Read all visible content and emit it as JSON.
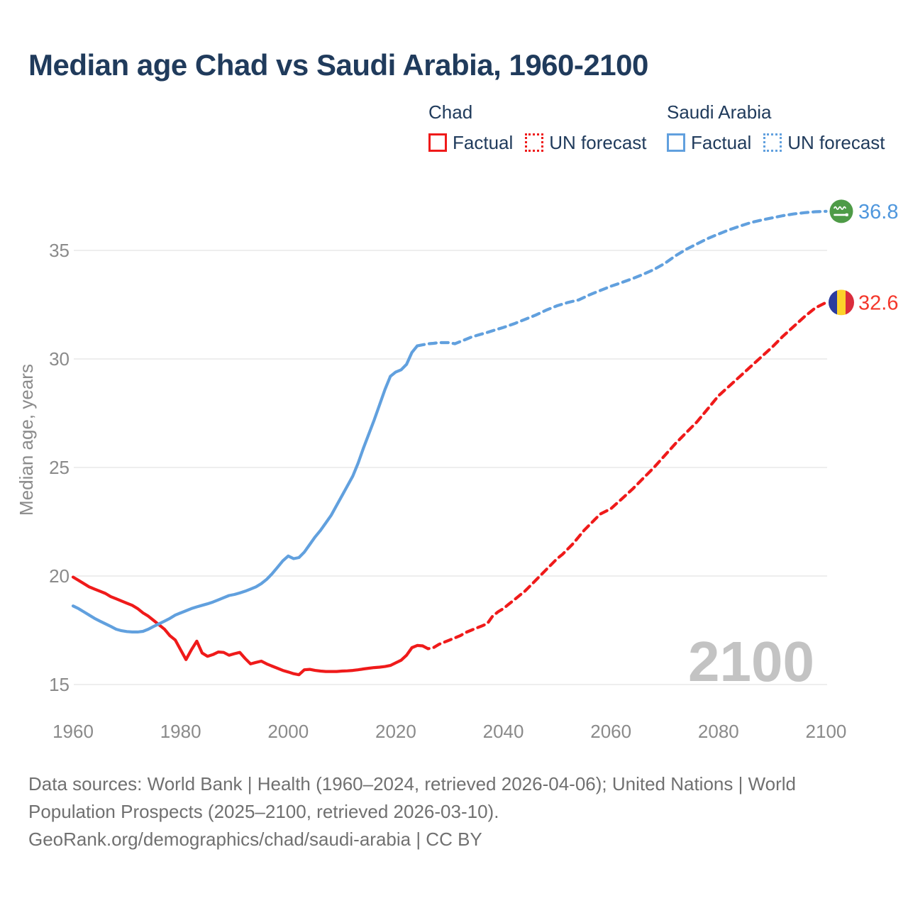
{
  "title": "Median age Chad vs Saudi Arabia, 1960-2100",
  "watermark": "2100",
  "colors": {
    "red": "#ef1a1a",
    "red_label": "#f4372b",
    "blue": "#61a0de",
    "blue_label": "#4f97dd",
    "title_text": "#203b5c",
    "axis_text": "#8a8a8a",
    "muted_text": "#707070",
    "grid": "#e9e9e9",
    "watermark": "#c3c3c3",
    "flag_saudi_green": "#4e9b47",
    "flag_chad_blue": "#2b3c9e",
    "flag_chad_yellow": "#fcd22a",
    "flag_chad_red": "#da2c3c"
  },
  "legend": {
    "groups": [
      {
        "id": "chad",
        "title": "Chad",
        "items": [
          {
            "label": "Factual",
            "swatch": "red-solid"
          },
          {
            "label": "UN forecast",
            "swatch": "red-dotted"
          }
        ]
      },
      {
        "id": "saudi-arabia",
        "title": "Saudi Arabia",
        "items": [
          {
            "label": "Factual",
            "swatch": "blue-solid"
          },
          {
            "label": "UN forecast",
            "swatch": "blue-dotted"
          }
        ]
      }
    ]
  },
  "footer": {
    "line1": "Data sources: World Bank | Health (1960–2024, retrieved 2026-04-06); United Nations | World",
    "line2": "Population Prospects (2025–2100, retrieved 2026-03-10).",
    "line3": "GeoRank.org/demographics/chad/saudi-arabia | CC BY"
  },
  "chart_data": {
    "type": "line",
    "title": "Median age Chad vs Saudi Arabia, 1960-2100",
    "xlabel": "",
    "ylabel": "Median age, years",
    "xlim": [
      1959,
      2113
    ],
    "ylim": [
      13.7,
      38
    ],
    "grid": "horizontal",
    "x_ticks": [
      1960,
      1980,
      2000,
      2020,
      2040,
      2060,
      2080,
      2100
    ],
    "y_ticks": [
      15,
      20,
      25,
      30,
      35
    ],
    "legend_position": "top-right",
    "series": [
      {
        "id": "chad-factual",
        "name": "Chad — Factual",
        "color": "red",
        "style": "solid",
        "points": [
          [
            1960,
            19.95
          ],
          [
            1961,
            19.8
          ],
          [
            1962,
            19.65
          ],
          [
            1963,
            19.5
          ],
          [
            1964,
            19.4
          ],
          [
            1965,
            19.3
          ],
          [
            1966,
            19.2
          ],
          [
            1967,
            19.05
          ],
          [
            1968,
            18.95
          ],
          [
            1969,
            18.85
          ],
          [
            1970,
            18.75
          ],
          [
            1971,
            18.65
          ],
          [
            1972,
            18.5
          ],
          [
            1973,
            18.3
          ],
          [
            1974,
            18.15
          ],
          [
            1975,
            17.95
          ],
          [
            1976,
            17.75
          ],
          [
            1977,
            17.55
          ],
          [
            1978,
            17.25
          ],
          [
            1979,
            17.05
          ],
          [
            1980,
            16.6
          ],
          [
            1981,
            16.15
          ],
          [
            1982,
            16.6
          ],
          [
            1983,
            17.0
          ],
          [
            1984,
            16.45
          ],
          [
            1985,
            16.3
          ],
          [
            1986,
            16.38
          ],
          [
            1987,
            16.5
          ],
          [
            1988,
            16.48
          ],
          [
            1989,
            16.35
          ],
          [
            1990,
            16.42
          ],
          [
            1991,
            16.48
          ],
          [
            1992,
            16.2
          ],
          [
            1993,
            15.95
          ],
          [
            1994,
            16.02
          ],
          [
            1995,
            16.08
          ],
          [
            1996,
            15.95
          ],
          [
            1997,
            15.85
          ],
          [
            1998,
            15.75
          ],
          [
            1999,
            15.65
          ],
          [
            2000,
            15.58
          ],
          [
            2001,
            15.5
          ],
          [
            2002,
            15.45
          ],
          [
            2003,
            15.68
          ],
          [
            2004,
            15.7
          ],
          [
            2005,
            15.65
          ],
          [
            2006,
            15.62
          ],
          [
            2007,
            15.6
          ],
          [
            2008,
            15.6
          ],
          [
            2009,
            15.6
          ],
          [
            2010,
            15.62
          ],
          [
            2011,
            15.63
          ],
          [
            2012,
            15.65
          ],
          [
            2013,
            15.68
          ],
          [
            2014,
            15.72
          ],
          [
            2015,
            15.75
          ],
          [
            2016,
            15.78
          ],
          [
            2017,
            15.8
          ],
          [
            2018,
            15.83
          ],
          [
            2019,
            15.88
          ],
          [
            2020,
            16.0
          ],
          [
            2021,
            16.12
          ],
          [
            2022,
            16.35
          ],
          [
            2023,
            16.7
          ],
          [
            2024,
            16.8
          ],
          [
            2025,
            16.78
          ]
        ]
      },
      {
        "id": "chad-forecast",
        "name": "Chad — UN forecast",
        "color": "red",
        "style": "dashed",
        "end_label": "32.6",
        "end_label_color": "red_label",
        "end_flag": "chad",
        "points": [
          [
            2025,
            16.78
          ],
          [
            2026,
            16.65
          ],
          [
            2027,
            16.7
          ],
          [
            2028,
            16.85
          ],
          [
            2029,
            16.95
          ],
          [
            2030,
            17.05
          ],
          [
            2031,
            17.15
          ],
          [
            2032,
            17.25
          ],
          [
            2033,
            17.4
          ],
          [
            2034,
            17.5
          ],
          [
            2035,
            17.6
          ],
          [
            2036,
            17.7
          ],
          [
            2037,
            17.8
          ],
          [
            2038,
            18.15
          ],
          [
            2039,
            18.35
          ],
          [
            2040,
            18.5
          ],
          [
            2041,
            18.7
          ],
          [
            2042,
            18.9
          ],
          [
            2043,
            19.1
          ],
          [
            2044,
            19.3
          ],
          [
            2045,
            19.55
          ],
          [
            2046,
            19.8
          ],
          [
            2047,
            20.05
          ],
          [
            2048,
            20.3
          ],
          [
            2049,
            20.55
          ],
          [
            2050,
            20.8
          ],
          [
            2051,
            21.0
          ],
          [
            2052,
            21.25
          ],
          [
            2053,
            21.5
          ],
          [
            2054,
            21.8
          ],
          [
            2055,
            22.1
          ],
          [
            2056,
            22.35
          ],
          [
            2057,
            22.6
          ],
          [
            2058,
            22.85
          ],
          [
            2060,
            23.1
          ],
          [
            2062,
            23.55
          ],
          [
            2064,
            24.0
          ],
          [
            2066,
            24.5
          ],
          [
            2068,
            25.0
          ],
          [
            2070,
            25.55
          ],
          [
            2072,
            26.1
          ],
          [
            2074,
            26.6
          ],
          [
            2076,
            27.1
          ],
          [
            2078,
            27.7
          ],
          [
            2080,
            28.3
          ],
          [
            2082,
            28.75
          ],
          [
            2084,
            29.2
          ],
          [
            2086,
            29.65
          ],
          [
            2088,
            30.1
          ],
          [
            2090,
            30.55
          ],
          [
            2092,
            31.05
          ],
          [
            2094,
            31.5
          ],
          [
            2096,
            31.95
          ],
          [
            2098,
            32.35
          ],
          [
            2100,
            32.6
          ]
        ]
      },
      {
        "id": "saudi-factual",
        "name": "Saudi Arabia — Factual",
        "color": "blue",
        "style": "solid",
        "points": [
          [
            1960,
            18.62
          ],
          [
            1961,
            18.5
          ],
          [
            1962,
            18.35
          ],
          [
            1963,
            18.2
          ],
          [
            1964,
            18.05
          ],
          [
            1965,
            17.92
          ],
          [
            1966,
            17.8
          ],
          [
            1967,
            17.68
          ],
          [
            1968,
            17.55
          ],
          [
            1969,
            17.48
          ],
          [
            1970,
            17.44
          ],
          [
            1971,
            17.42
          ],
          [
            1972,
            17.42
          ],
          [
            1973,
            17.45
          ],
          [
            1974,
            17.55
          ],
          [
            1975,
            17.68
          ],
          [
            1976,
            17.8
          ],
          [
            1977,
            17.92
          ],
          [
            1978,
            18.05
          ],
          [
            1979,
            18.2
          ],
          [
            1980,
            18.3
          ],
          [
            1981,
            18.4
          ],
          [
            1982,
            18.5
          ],
          [
            1983,
            18.58
          ],
          [
            1984,
            18.65
          ],
          [
            1985,
            18.72
          ],
          [
            1986,
            18.8
          ],
          [
            1987,
            18.9
          ],
          [
            1988,
            19.0
          ],
          [
            1989,
            19.1
          ],
          [
            1990,
            19.15
          ],
          [
            1991,
            19.22
          ],
          [
            1992,
            19.3
          ],
          [
            1993,
            19.4
          ],
          [
            1994,
            19.5
          ],
          [
            1995,
            19.65
          ],
          [
            1996,
            19.85
          ],
          [
            1997,
            20.1
          ],
          [
            1998,
            20.4
          ],
          [
            1999,
            20.7
          ],
          [
            2000,
            20.92
          ],
          [
            2001,
            20.8
          ],
          [
            2002,
            20.85
          ],
          [
            2003,
            21.1
          ],
          [
            2004,
            21.45
          ],
          [
            2005,
            21.8
          ],
          [
            2006,
            22.1
          ],
          [
            2007,
            22.45
          ],
          [
            2008,
            22.8
          ],
          [
            2009,
            23.25
          ],
          [
            2010,
            23.7
          ],
          [
            2011,
            24.15
          ],
          [
            2012,
            24.6
          ],
          [
            2013,
            25.2
          ],
          [
            2014,
            25.9
          ],
          [
            2015,
            26.55
          ],
          [
            2016,
            27.2
          ],
          [
            2017,
            27.9
          ],
          [
            2018,
            28.6
          ],
          [
            2019,
            29.2
          ],
          [
            2020,
            29.4
          ],
          [
            2021,
            29.5
          ],
          [
            2022,
            29.75
          ],
          [
            2023,
            30.3
          ],
          [
            2024,
            30.6
          ]
        ]
      },
      {
        "id": "saudi-forecast",
        "name": "Saudi Arabia — UN forecast",
        "color": "blue",
        "style": "dashed",
        "end_label": "36.8",
        "end_label_color": "blue_label",
        "end_flag": "saudi-arabia",
        "points": [
          [
            2024,
            30.6
          ],
          [
            2025,
            30.65
          ],
          [
            2026,
            30.7
          ],
          [
            2027,
            30.72
          ],
          [
            2028,
            30.75
          ],
          [
            2029,
            30.75
          ],
          [
            2030,
            30.75
          ],
          [
            2031,
            30.7
          ],
          [
            2032,
            30.8
          ],
          [
            2033,
            30.9
          ],
          [
            2034,
            31.0
          ],
          [
            2035,
            31.08
          ],
          [
            2036,
            31.15
          ],
          [
            2037,
            31.22
          ],
          [
            2038,
            31.3
          ],
          [
            2040,
            31.45
          ],
          [
            2042,
            31.62
          ],
          [
            2044,
            31.82
          ],
          [
            2046,
            32.02
          ],
          [
            2048,
            32.25
          ],
          [
            2050,
            32.45
          ],
          [
            2052,
            32.6
          ],
          [
            2054,
            32.72
          ],
          [
            2056,
            32.95
          ],
          [
            2058,
            33.15
          ],
          [
            2060,
            33.35
          ],
          [
            2062,
            33.52
          ],
          [
            2064,
            33.7
          ],
          [
            2066,
            33.9
          ],
          [
            2068,
            34.12
          ],
          [
            2070,
            34.4
          ],
          [
            2072,
            34.75
          ],
          [
            2074,
            35.05
          ],
          [
            2076,
            35.3
          ],
          [
            2078,
            35.55
          ],
          [
            2080,
            35.75
          ],
          [
            2082,
            35.95
          ],
          [
            2084,
            36.12
          ],
          [
            2086,
            36.28
          ],
          [
            2088,
            36.4
          ],
          [
            2090,
            36.5
          ],
          [
            2092,
            36.6
          ],
          [
            2094,
            36.68
          ],
          [
            2096,
            36.74
          ],
          [
            2098,
            36.78
          ],
          [
            2100,
            36.8
          ]
        ]
      }
    ]
  }
}
